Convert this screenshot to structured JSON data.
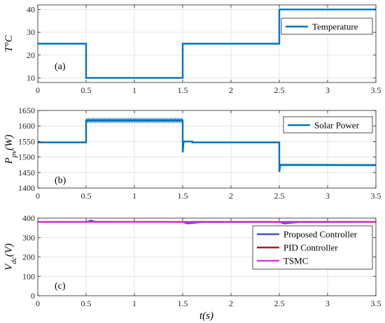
{
  "chart_data": [
    {
      "type": "line",
      "panel_label": "(a)",
      "ylabel": "T°C",
      "xlim": [
        0,
        3.5
      ],
      "ylim": [
        8,
        42
      ],
      "xticks": [
        "0",
        "0.5",
        "1",
        "1.5",
        "2",
        "2.5",
        "3",
        "3.5"
      ],
      "yticks": [
        "10",
        "20",
        "30",
        "40"
      ],
      "grid": true,
      "legend": "top-right",
      "series": [
        {
          "name": "Temperature",
          "color": "#0072BD",
          "x": [
            0,
            0.5,
            0.5,
            1.5,
            1.5,
            2.5,
            2.5,
            3.5
          ],
          "y": [
            25,
            25,
            10,
            10,
            25,
            25,
            40,
            40
          ]
        }
      ]
    },
    {
      "type": "line",
      "panel_label": "(b)",
      "ylabel": "Ppv(W)",
      "xlim": [
        0,
        3.5
      ],
      "ylim": [
        1400,
        1650
      ],
      "xticks": [
        "0",
        "0.5",
        "1",
        "1.5",
        "2",
        "2.5",
        "3",
        "3.5"
      ],
      "yticks": [
        "1400",
        "1450",
        "1500",
        "1550",
        "1600",
        "1650"
      ],
      "grid": true,
      "legend": "top-right",
      "series": [
        {
          "name": "Solar Power",
          "color": "#0072BD",
          "x": [
            0,
            0.5,
            0.5,
            1.49,
            1.5,
            1.5,
            1.51,
            1.6,
            1.6,
            2.49,
            2.5,
            2.5,
            2.51,
            3.5
          ],
          "y": [
            1547,
            1547,
            1618,
            1618,
            1618,
            1515,
            1550,
            1550,
            1547,
            1547,
            1547,
            1452,
            1475,
            1474
          ]
        }
      ]
    },
    {
      "type": "line",
      "panel_label": "(c)",
      "ylabel": "Vdc(V)",
      "xlabel": "t(s)",
      "xlim": [
        0,
        3.5
      ],
      "ylim": [
        0,
        400
      ],
      "xticks": [
        "0",
        "0.5",
        "1",
        "1.5",
        "2",
        "2.5",
        "3",
        "3.5"
      ],
      "yticks": [
        "0",
        "100",
        "200",
        "300",
        "400"
      ],
      "grid": true,
      "legend": "right",
      "series": [
        {
          "name": "Proposed Controller",
          "color": "#3a55c9",
          "x": [
            0,
            0.5,
            0.55,
            0.6,
            1.5,
            1.55,
            1.7,
            2.5,
            2.55,
            2.7,
            3.5
          ],
          "y": [
            380,
            380,
            388,
            381,
            380,
            372,
            379,
            380,
            372,
            379,
            380
          ]
        },
        {
          "name": "PID Controller",
          "color": "#a52020",
          "x": [
            0,
            3.5
          ],
          "y": [
            381,
            381
          ]
        },
        {
          "name": "TSMC",
          "color": "#e034e0",
          "x": [
            0,
            3.5
          ],
          "y": [
            380,
            380
          ]
        }
      ]
    }
  ]
}
